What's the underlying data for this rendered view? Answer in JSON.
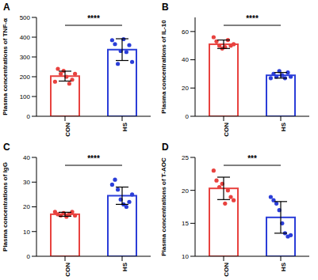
{
  "chart_data": [
    {
      "type": "bar",
      "title": "A",
      "y_label": "Plasma concentrations of TNF-α",
      "categories": [
        "CON",
        "HS"
      ],
      "values": [
        203,
        337
      ],
      "errors": [
        25,
        55
      ],
      "points": [
        [
          175,
          240,
          215,
          230,
          200,
          165,
          185,
          215
        ],
        [
          385,
          365,
          265,
          330,
          390,
          325,
          360,
          275
        ]
      ],
      "colors": [
        "#e8423f",
        "#2b3ed8"
      ],
      "marker": "circle",
      "annotation": "****",
      "ylim": [
        0,
        500
      ],
      "yticks": [
        0,
        100,
        200,
        300,
        400,
        500
      ]
    },
    {
      "type": "bar",
      "title": "B",
      "y_label": "Plasma concentrations of IL-10",
      "categories": [
        "CON",
        "HS"
      ],
      "values": [
        51,
        29
      ],
      "errors": [
        3,
        2
      ],
      "points": [
        [
          56,
          53,
          50,
          48,
          49,
          54,
          50,
          51
        ],
        [
          27,
          30,
          28,
          32,
          29,
          27,
          31,
          28
        ]
      ],
      "colors": [
        "#e8423f",
        "#2b3ed8"
      ],
      "marker": "circle",
      "annotation": "****",
      "ylim": [
        0,
        70
      ],
      "yticks": [
        0,
        20,
        40,
        60
      ]
    },
    {
      "type": "bar",
      "title": "C",
      "y_label": "Plasma concentrations of IgG",
      "categories": [
        "CON",
        "HS"
      ],
      "values": [
        17,
        24.5
      ],
      "errors": [
        0.8,
        3.5
      ],
      "points": [
        [
          18,
          17,
          16.5,
          17.5,
          16,
          17,
          18,
          16.5
        ],
        [
          29,
          31,
          27,
          23,
          21,
          20,
          22,
          25
        ]
      ],
      "colors": [
        "#e8423f",
        "#2b3ed8"
      ],
      "marker": "circle",
      "annotation": "****",
      "ylim": [
        0,
        40
      ],
      "yticks": [
        0,
        10,
        20,
        30,
        40
      ]
    },
    {
      "type": "bar",
      "title": "D",
      "y_label": "Plasma concentrations of T-AOC",
      "categories": [
        "CON",
        "HS"
      ],
      "values": [
        20.3,
        15.9
      ],
      "errors": [
        1.7,
        2.4
      ],
      "points": [
        [
          23,
          21.5,
          20.5,
          21,
          18,
          20,
          19,
          18.5
        ],
        [
          19,
          18.5,
          18,
          17,
          15,
          13.5,
          13,
          13.2
        ]
      ],
      "colors": [
        "#e8423f",
        "#2b3ed8"
      ],
      "marker": "circle",
      "annotation": "***",
      "ylim": [
        10,
        25
      ],
      "yticks": [
        10,
        15,
        20,
        25
      ]
    }
  ]
}
